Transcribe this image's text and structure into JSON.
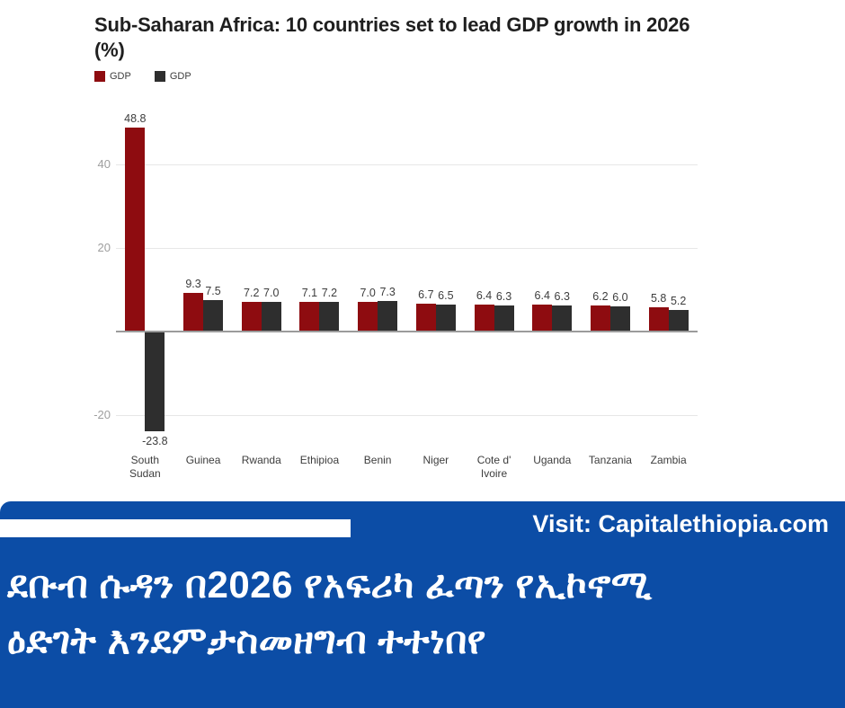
{
  "chart_data": {
    "type": "bar",
    "title": "Sub-Saharan Africa: 10 countries set to lead GDP growth in 2026 (%)",
    "categories": [
      "South Sudan",
      "Guinea",
      "Rwanda",
      "Ethipioa",
      "Benin",
      "Niger",
      "Cote d' Ivoire",
      "Uganda",
      "Tanzania",
      "Zambia"
    ],
    "series": [
      {
        "name": "GDP",
        "color": "#8e0c10",
        "values": [
          48.8,
          9.3,
          7.2,
          7.1,
          7.0,
          6.7,
          6.4,
          6.4,
          6.2,
          5.8
        ]
      },
      {
        "name": "GDP",
        "color": "#2e2e2e",
        "values": [
          -23.8,
          7.5,
          7.0,
          7.2,
          7.3,
          6.5,
          6.3,
          6.3,
          6.0,
          5.2
        ]
      }
    ],
    "y_ticks": [
      40,
      20,
      -20
    ],
    "ylim": [
      -27,
      52
    ],
    "xlabel": "",
    "ylabel": "",
    "grid": true,
    "legend_position": "top-left",
    "value_labels_decimals": 1
  },
  "colors": {
    "series1": "#8e0c10",
    "series2": "#2e2e2e",
    "gridline": "#e7e7e7",
    "axis_line": "#9b9b9b",
    "banner_blue": "#0c4da6",
    "text_dark": "#1f1f1f"
  },
  "banner": {
    "visit_text": "Visit: Capitalethiopia.com",
    "headline_line1": "ደቡብ ሱዳን በ2026 የአፍሪካ ፈጣን የኢኮኖሚ",
    "headline_line2": "ዕድገት እንደምታስመዘግብ ተተነበየ"
  }
}
